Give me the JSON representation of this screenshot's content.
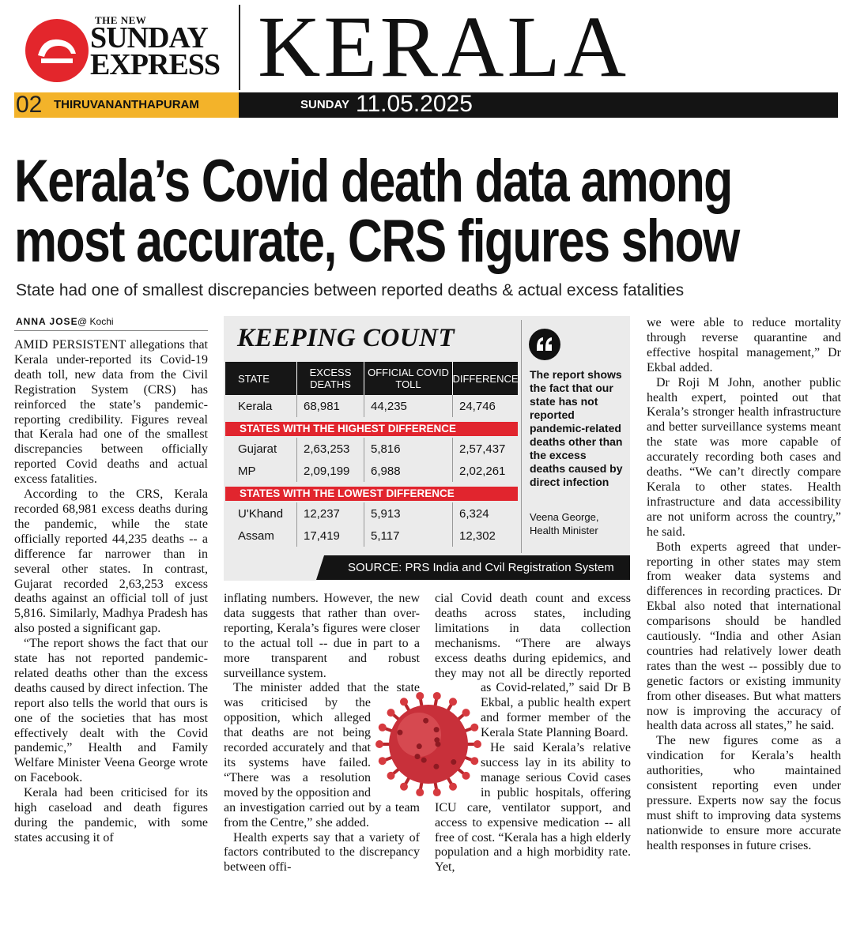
{
  "masthead": {
    "brand_top": "THE NEW",
    "brand_line1": "SUNDAY",
    "brand_line2": "EXPRESS",
    "section": "KERALA"
  },
  "dateline": {
    "page": "02",
    "city": "THIRUVANANTHAPURAM",
    "day": "SUNDAY",
    "date": "11.05.2025"
  },
  "article": {
    "headline": [
      "Kerala’s Covid death data among",
      "most accurate, CRS figures show"
    ],
    "subhead": "State had one of smallest discrepancies between reported deaths & actual excess fatalities",
    "byline": {
      "author": "ANNA JOSE",
      "location": "@ Kochi"
    },
    "columns": [
      [
        "AMID PERSISTENT allegations that Kerala under-reported its Covid-19 death toll, new data from the Civil Registration System (CRS) has reinforced the state’s pandemic-reporting credibility. Figures reveal that Kerala had one of the smallest discrepancies between officially reported Covid deaths and actual excess fatalities.",
        "According to the CRS, Kerala recorded 68,981 excess deaths during the pandemic, while the state officially reported 44,235 deaths -- a difference far narrower than in several other states. In contrast, Gujarat recorded 2,63,253 excess deaths against an official toll of just 5,816. Similarly, Madhya Pradesh has also posted a significant gap.",
        "“The report shows the fact that our state has not reported pandemic-related deaths other than the excess deaths caused by direct infection. The report also tells the world that ours is one of the societies that has most effectively dealt with the Covid pandemic,” Health and Family Welfare Minister Veena George wrote on Facebook.",
        "Kerala had been criticised for its high caseload and death figures during the pandemic, with some states accusing it of"
      ],
      [
        "inflating numbers. However, the new data suggests that rather than over-reporting, Kerala’s figures were closer to the actual toll -- due in part to a more transparent and robust surveillance system.",
        "The minister added that the state was criticised by the opposition, which alleged that deaths are not being recorded accurately and that its systems have failed. “There was a resolution moved by the opposition and an investigation carried out by a team from the Centre,” she added.",
        "Health experts say that a variety of factors contributed to the discrepancy between offi-"
      ],
      [
        "cial Covid death count and excess deaths across states, including limitations in data collection mechanisms. “There are always excess deaths during epidemics, and they may not all be directly reported as Covid-related,” said Dr B Ekbal, a public health expert and former member of the Kerala State Planning Board.",
        "He said Kerala’s relative success lay in its ability to manage serious Covid cases in public hospitals, offering ICU care, ventilator support, and access to expensive medication -- all free of cost. “Kerala has a high elderly population and a high morbidity rate. Yet,"
      ],
      [
        "we were able to reduce mortality through reverse quarantine and effective hospital management,” Dr Ekbal added.",
        "Dr Roji M John, another public health expert, pointed out that Kerala’s stronger health infrastructure and better surveillance systems meant the state was more capable of accurately recording both cases and deaths. “We can’t directly compare Kerala to other states. Health infrastructure and data accessibility are not uniform across the country,” he said.",
        "Both experts agreed that under-reporting in other states may stem from weaker data systems and differences in recording practices. Dr Ekbal also noted that international comparisons should be handled cautiously. “India and other Asian countries had relatively lower death rates than the west -- possibly due to genetic factors or existing immunity from other diseases. But what matters now is improving the accuracy of health data across all states,” he said.",
        "The new figures come as a vindication for Kerala’s health authorities, who maintained consistent reporting even under pressure. Experts now say the focus must shift to improving data systems nationwide to ensure more accurate health responses in future crises."
      ]
    ]
  },
  "infobox": {
    "title": "KEEPING COUNT",
    "columns": [
      "STATE",
      "EXCESS DEATHS",
      "OFFICIAL COVID TOLL",
      "DIFFERENCE"
    ],
    "sections": [
      {
        "rows": [
          [
            "Kerala",
            "68,981",
            "44,235",
            "24,746"
          ]
        ]
      },
      {
        "label": "STATES WITH THE HIGHEST DIFFERENCE",
        "rows": [
          [
            "Gujarat",
            "2,63,253",
            "5,816",
            "2,57,437"
          ],
          [
            "MP",
            "2,09,199",
            "6,988",
            "2,02,261"
          ]
        ]
      },
      {
        "label": "STATES WITH THE LOWEST DIFFERENCE",
        "rows": [
          [
            "U'Khand",
            "12,237",
            "5,913",
            "6,324"
          ],
          [
            "Assam",
            "17,419",
            "5,117",
            "12,302"
          ]
        ]
      }
    ],
    "source": "SOURCE: PRS India and Cvil Registration System"
  },
  "quote": {
    "text": "The report shows the fact that our state has not reported pandemic-related deaths other than the excess deaths caused by direct infection",
    "name": "Veena George,",
    "role": "Health Minister"
  }
}
